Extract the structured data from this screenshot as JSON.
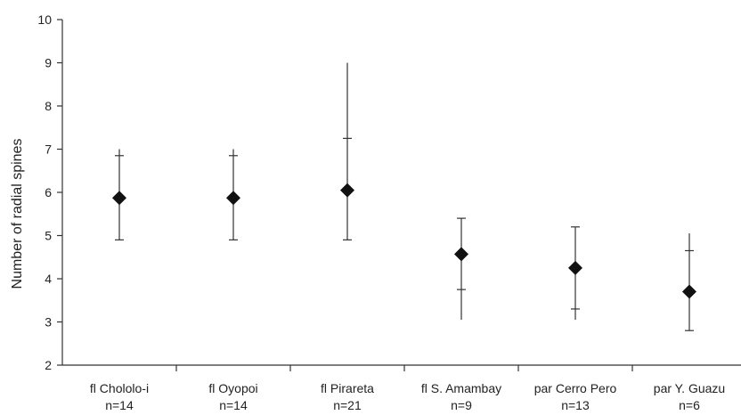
{
  "chart_data": {
    "type": "scatter",
    "title": "",
    "xlabel": "",
    "ylabel": "Number of radial spines",
    "ylim": [
      2,
      10
    ],
    "yticks": [
      2,
      3,
      4,
      5,
      6,
      7,
      8,
      9,
      10
    ],
    "grid": false,
    "legend": "none",
    "categories": [
      {
        "name": "fl Chololo-i",
        "n_label": "n=14",
        "mean": 5.87,
        "range": [
          4.9,
          7.0
        ],
        "sd": [
          4.9,
          6.85
        ]
      },
      {
        "name": "fl Oyopoi",
        "n_label": "n=14",
        "mean": 5.87,
        "range": [
          4.9,
          7.0
        ],
        "sd": [
          4.9,
          6.85
        ]
      },
      {
        "name": "fl Pirareta",
        "n_label": "n=21",
        "mean": 6.05,
        "range": [
          4.9,
          9.0
        ],
        "sd": [
          4.9,
          7.25
        ]
      },
      {
        "name": "fl S. Amambay",
        "n_label": "n=9",
        "mean": 4.57,
        "range": [
          3.05,
          5.4
        ],
        "sd": [
          3.75,
          5.4
        ]
      },
      {
        "name": "par Cerro Pero",
        "n_label": "n=13",
        "mean": 4.25,
        "range": [
          3.05,
          5.2
        ],
        "sd": [
          3.3,
          5.2
        ]
      },
      {
        "name": "par Y. Guazu",
        "n_label": "n=6",
        "mean": 3.7,
        "range": [
          2.8,
          5.05
        ],
        "sd": [
          2.8,
          4.65
        ]
      }
    ],
    "colors": {
      "marker": "#111111",
      "line": "#333333"
    }
  }
}
